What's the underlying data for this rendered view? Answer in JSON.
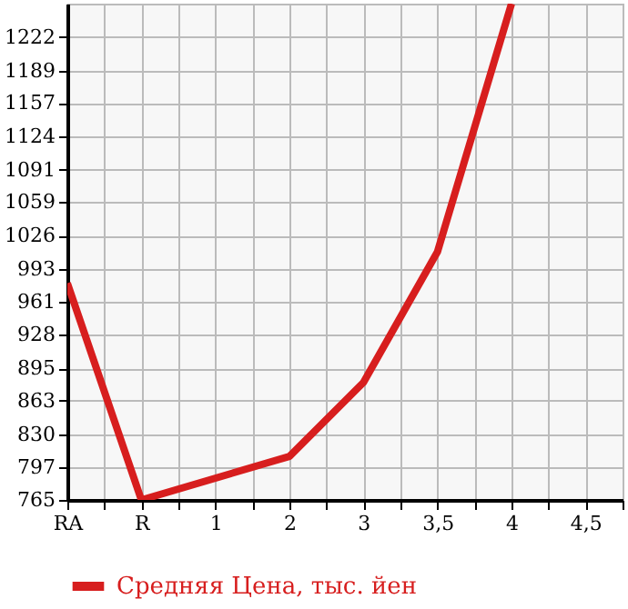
{
  "chart_data": {
    "type": "line",
    "categories": [
      "RA",
      "R",
      "1",
      "2",
      "3",
      "3,5",
      "4",
      "4,5"
    ],
    "series": [
      {
        "name": "Средняя Цена, тыс. йен",
        "color": "#d71e1e",
        "values": [
          979,
          765,
          null,
          808,
          881,
          1010,
          1255,
          null
        ]
      }
    ],
    "ylim": [
      765,
      1255
    ],
    "yticks": [
      765,
      797,
      830,
      863,
      895,
      928,
      961,
      993,
      1026,
      1059,
      1091,
      1124,
      1157,
      1189,
      1222
    ],
    "grid": true,
    "legend": "bottom left",
    "marker": "none",
    "line_style": "solid"
  }
}
